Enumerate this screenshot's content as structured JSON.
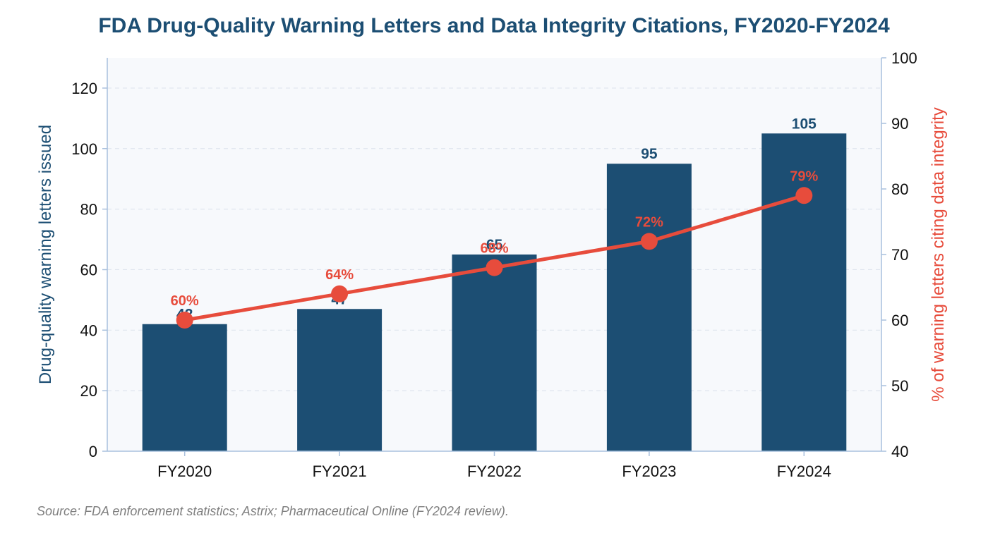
{
  "chart_data": {
    "type": "bar",
    "title": "FDA Drug-Quality Warning Letters and Data Integrity Citations, FY2020-FY2024",
    "categories": [
      "FY2020",
      "FY2021",
      "FY2022",
      "FY2023",
      "FY2024"
    ],
    "series": [
      {
        "type": "bar",
        "axis": "left",
        "values": [
          42,
          47,
          65,
          95,
          105
        ],
        "data_labels": [
          "42",
          "47",
          "65",
          "95",
          "105"
        ],
        "color": "#1c4e73"
      },
      {
        "type": "line",
        "axis": "right",
        "values": [
          60,
          64,
          68,
          72,
          79
        ],
        "data_labels": [
          "60%",
          "64%",
          "68%",
          "72%",
          "79%"
        ],
        "color": "#e74c3c"
      }
    ],
    "ylabel": "Drug-quality warning letters issued",
    "y2label": "% of warning letters citing data integrity",
    "ylim": [
      0,
      130
    ],
    "y2lim": [
      40,
      100
    ],
    "yticks": [
      0,
      20,
      40,
      60,
      80,
      100,
      120
    ],
    "y2ticks": [
      40,
      50,
      60,
      70,
      80,
      90,
      100
    ],
    "grid": "horizontal dashed",
    "legend": "none",
    "colors": {
      "title": "#1c4e73",
      "bar": "#1c4e73",
      "line": "#e74c3c",
      "plot_background": "#f7f9fc",
      "axis": "#a9c0dd",
      "source": "#7f7f7f"
    }
  },
  "source_note": "Source: FDA enforcement statistics; Astrix; Pharmaceutical Online (FY2024 review)."
}
